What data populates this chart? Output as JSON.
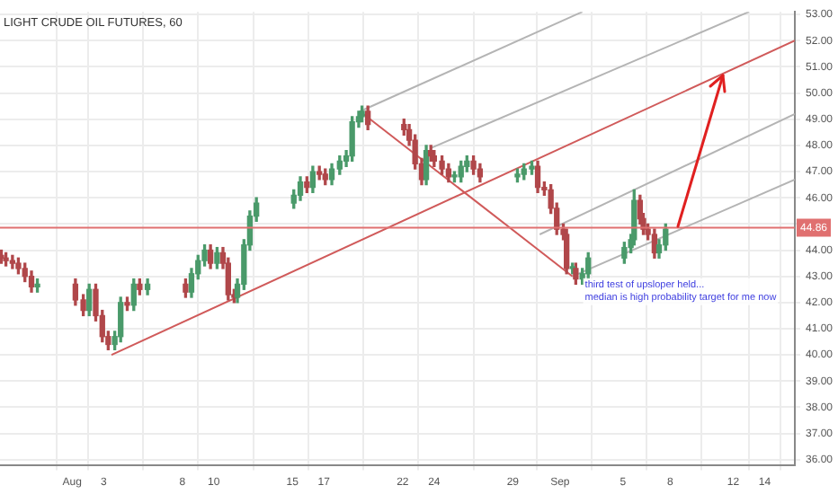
{
  "chart_data": {
    "type": "candlestick",
    "title": "LIGHT CRUDE OIL FUTURES, 60",
    "x": [
      "--07-27T12:00",
      "--07-27T19:00",
      "--07-28T05:00",
      "--07-28T14:00",
      "--07-29T00:00",
      "--07-29T10:00",
      "--07-29T19:00",
      "--08-01T05:00",
      "--08-01T17:00",
      "--08-02T02:00",
      "--08-02T12:00",
      "--08-02T22:00",
      "--08-03T07:00",
      "--08-03T17:00",
      "--08-04T02:00",
      "--08-04T12:00",
      "--08-04T22:00",
      "--08-05T07:00",
      "--08-05T19:00",
      "--08-08T05:00",
      "--08-08T14:00",
      "--08-09T00:00",
      "--08-09T10:00",
      "--08-09T19:00",
      "--08-10T05:00",
      "--08-10T14:00",
      "--08-10T22:00",
      "--08-11T07:00",
      "--08-11T12:00",
      "--08-11T22:00",
      "--08-12T07:00",
      "--08-12T17:00",
      "--08-15T02:00",
      "--08-15T12:00",
      "--08-15T22:00",
      "--08-16T07:00",
      "--08-16T17:00",
      "--08-17T02:00",
      "--08-17T12:00",
      "--08-18T00:00",
      "--08-18T10:00",
      "--08-18T19:00",
      "--08-19T05:00",
      "--08-19T10:00",
      "--08-19T19:00",
      "--08-22T02:00",
      "--08-22T10:00",
      "--08-22T19:00",
      "--08-23T05:00",
      "--08-23T12:00",
      "--08-23T19:00",
      "--08-24T00:00",
      "--08-24T12:00",
      "--08-24T22:00",
      "--08-25T07:00",
      "--08-25T17:00",
      "--08-26T02:00",
      "--08-26T12:00",
      "--08-26T22:00",
      "--08-29T07:00",
      "--08-29T17:00",
      "--08-30T05:00",
      "--08-30T14:00",
      "--08-31T00:00",
      "--08-31T10:00",
      "--08-31T19:00",
      "--09-01T05:00",
      "--09-01T10:00",
      "--09-01T19:00",
      "--09-02T00:00",
      "--09-02T10:00",
      "--09-02T19:00",
      "--09-05T02:00",
      "--09-05T12:00",
      "--09-05T17:00",
      "--09-06T02:00",
      "--09-06T07:00",
      "--09-06T14:00",
      "--09-07T00:00",
      "--09-07T07:00",
      "--09-07T17:00"
    ],
    "ohlc": [
      [
        43.8,
        44.0,
        43.5,
        43.7
      ],
      [
        43.7,
        43.9,
        43.4,
        43.6
      ],
      [
        43.6,
        43.8,
        43.3,
        43.5
      ],
      [
        43.5,
        43.7,
        43.1,
        43.3
      ],
      [
        43.3,
        43.5,
        42.8,
        43.0
      ],
      [
        43.0,
        43.2,
        42.4,
        42.6
      ],
      [
        42.6,
        42.9,
        42.4,
        42.7
      ],
      [
        42.7,
        42.9,
        41.9,
        42.1
      ],
      [
        42.1,
        42.3,
        41.5,
        41.7
      ],
      [
        41.7,
        42.7,
        41.5,
        42.5
      ],
      [
        42.5,
        42.7,
        41.3,
        41.5
      ],
      [
        41.5,
        41.7,
        40.5,
        40.7
      ],
      [
        40.7,
        40.9,
        40.2,
        40.4
      ],
      [
        40.4,
        40.9,
        40.2,
        40.7
      ],
      [
        40.7,
        42.2,
        40.5,
        42.0
      ],
      [
        42.0,
        42.2,
        41.7,
        41.9
      ],
      [
        41.9,
        42.9,
        41.7,
        42.7
      ],
      [
        42.7,
        42.9,
        42.3,
        42.5
      ],
      [
        42.5,
        42.9,
        42.3,
        42.7
      ],
      [
        42.7,
        42.9,
        42.2,
        42.4
      ],
      [
        42.4,
        43.3,
        42.2,
        43.1
      ],
      [
        43.1,
        43.8,
        42.9,
        43.6
      ],
      [
        43.6,
        44.2,
        43.4,
        44.0
      ],
      [
        44.0,
        44.2,
        43.3,
        43.5
      ],
      [
        43.5,
        44.1,
        43.3,
        43.9
      ],
      [
        43.9,
        44.1,
        43.3,
        43.5
      ],
      [
        43.5,
        43.7,
        42.1,
        42.3
      ],
      [
        42.3,
        42.5,
        42.0,
        42.2
      ],
      [
        42.2,
        42.9,
        42.0,
        42.7
      ],
      [
        42.7,
        44.4,
        42.5,
        44.2
      ],
      [
        44.2,
        45.5,
        44.0,
        45.3
      ],
      [
        45.3,
        46.0,
        45.1,
        45.8
      ],
      [
        45.8,
        46.3,
        45.6,
        46.1
      ],
      [
        46.1,
        46.8,
        45.9,
        46.6
      ],
      [
        46.6,
        46.8,
        46.2,
        46.4
      ],
      [
        46.4,
        47.2,
        46.2,
        47.0
      ],
      [
        47.0,
        47.2,
        46.7,
        46.9
      ],
      [
        46.9,
        47.1,
        46.5,
        46.7
      ],
      [
        46.7,
        47.3,
        46.5,
        47.1
      ],
      [
        47.1,
        47.6,
        46.9,
        47.4
      ],
      [
        47.4,
        47.8,
        47.2,
        47.6
      ],
      [
        47.6,
        49.1,
        47.4,
        48.9
      ],
      [
        48.9,
        49.3,
        48.7,
        49.1
      ],
      [
        49.1,
        49.5,
        48.9,
        49.3
      ],
      [
        49.3,
        49.5,
        48.6,
        48.8
      ],
      [
        48.8,
        49.0,
        48.4,
        48.6
      ],
      [
        48.6,
        48.8,
        48.0,
        48.2
      ],
      [
        48.2,
        48.4,
        47.1,
        47.3
      ],
      [
        47.3,
        47.5,
        46.5,
        46.7
      ],
      [
        46.7,
        48.0,
        46.5,
        47.8
      ],
      [
        47.8,
        48.0,
        47.4,
        47.6
      ],
      [
        47.6,
        47.8,
        47.2,
        47.4
      ],
      [
        47.4,
        47.6,
        46.9,
        47.1
      ],
      [
        47.1,
        47.3,
        46.6,
        46.8
      ],
      [
        46.8,
        47.0,
        46.6,
        46.8
      ],
      [
        46.8,
        47.4,
        46.6,
        47.2
      ],
      [
        47.2,
        47.6,
        47.0,
        47.4
      ],
      [
        47.4,
        47.6,
        46.9,
        47.1
      ],
      [
        47.1,
        47.3,
        46.6,
        46.8
      ],
      [
        46.8,
        47.1,
        46.6,
        46.9
      ],
      [
        46.9,
        47.3,
        46.7,
        47.1
      ],
      [
        47.1,
        47.4,
        46.9,
        47.2
      ],
      [
        47.2,
        47.4,
        46.2,
        46.4
      ],
      [
        46.4,
        46.6,
        46.1,
        46.3
      ],
      [
        46.3,
        46.5,
        45.4,
        45.6
      ],
      [
        45.6,
        45.8,
        44.6,
        44.8
      ],
      [
        44.8,
        45.0,
        44.4,
        44.6
      ],
      [
        44.6,
        44.8,
        43.1,
        43.3
      ],
      [
        43.3,
        43.5,
        43.1,
        43.3
      ],
      [
        43.3,
        43.5,
        42.7,
        42.9
      ],
      [
        42.9,
        43.3,
        42.7,
        43.1
      ],
      [
        43.1,
        43.9,
        42.9,
        43.7
      ],
      [
        43.7,
        44.3,
        43.5,
        44.1
      ],
      [
        44.1,
        44.6,
        43.9,
        44.4
      ],
      [
        44.4,
        46.3,
        44.2,
        45.9
      ],
      [
        45.9,
        46.1,
        45.0,
        45.2
      ],
      [
        45.2,
        45.4,
        44.6,
        44.8
      ],
      [
        44.8,
        45.0,
        44.4,
        44.6
      ],
      [
        44.6,
        44.8,
        43.7,
        43.9
      ],
      [
        43.9,
        44.4,
        43.7,
        44.2
      ],
      [
        44.2,
        45.0,
        44.0,
        44.8
      ]
    ],
    "colors": [
      "#b0474a",
      "#b0474a",
      "#b0474a",
      "#b0474a",
      "#b0474a",
      "#b0474a",
      "#4a9a6a",
      "#b0474a",
      "#b0474a",
      "#4a9a6a",
      "#b0474a",
      "#b0474a",
      "#b0474a",
      "#4a9a6a",
      "#4a9a6a",
      "#b0474a",
      "#4a9a6a",
      "#b0474a",
      "#4a9a6a",
      "#b0474a",
      "#4a9a6a",
      "#4a9a6a",
      "#4a9a6a",
      "#b0474a",
      "#4a9a6a",
      "#b0474a",
      "#b0474a",
      "#b0474a",
      "#4a9a6a",
      "#4a9a6a",
      "#4a9a6a",
      "#4a9a6a",
      "#4a9a6a",
      "#4a9a6a",
      "#b0474a",
      "#4a9a6a",
      "#b0474a",
      "#b0474a",
      "#4a9a6a",
      "#4a9a6a",
      "#4a9a6a",
      "#4a9a6a",
      "#4a9a6a",
      "#4a9a6a",
      "#b0474a",
      "#b0474a",
      "#b0474a",
      "#b0474a",
      "#b0474a",
      "#4a9a6a",
      "#b0474a",
      "#b0474a",
      "#b0474a",
      "#b0474a",
      "#4a9a6a",
      "#4a9a6a",
      "#4a9a6a",
      "#b0474a",
      "#b0474a",
      "#4a9a6a",
      "#4a9a6a",
      "#4a9a6a",
      "#b0474a",
      "#b0474a",
      "#b0474a",
      "#b0474a",
      "#b0474a",
      "#b0474a",
      "#4a9a6a",
      "#b0474a",
      "#4a9a6a",
      "#4a9a6a",
      "#4a9a6a",
      "#4a9a6a",
      "#4a9a6a",
      "#b0474a",
      "#b0474a",
      "#b0474a",
      "#b0474a",
      "#4a9a6a",
      "#4a9a6a"
    ],
    "series": [
      {
        "type": "line",
        "color": "#b4b4b4",
        "x": [
          "--08-19T07:00",
          "--09-02T10:00"
        ],
        "values": [
          49.3,
          53.1
        ]
      },
      {
        "type": "line",
        "color": "#b4b4b4",
        "x": [
          "--08-23T19:00",
          "--09-13T00:00"
        ],
        "values": [
          47.9,
          53.1
        ]
      },
      {
        "type": "line",
        "color": "#d05a5a",
        "x": [
          "--08-03T12:00",
          "--09-15T22:00"
        ],
        "values": [
          40.0,
          52.0
        ]
      },
      {
        "type": "line",
        "color": "#b4b4b4",
        "x": [
          "--08-30T17:00",
          "--09-15T22:00"
        ],
        "values": [
          44.6,
          49.2
        ]
      },
      {
        "type": "line",
        "color": "#b4b4b4",
        "x": [
          "--09-01T19:00",
          "--09-15T22:00"
        ],
        "values": [
          43.0,
          46.7
        ]
      },
      {
        "type": "line",
        "color": "#d05a5a",
        "x": [
          "--08-19T07:00",
          "--09-01T19:00"
        ],
        "values": [
          49.3,
          43.0
        ]
      }
    ],
    "ref_lines": [
      {
        "axis": "y",
        "value": 44.86,
        "label": "44.86",
        "color": "#e07070"
      }
    ],
    "annotations": [
      {
        "text": "third test of upsloper held...\nmedian is high probability target for me now",
        "x": "--09-02T14:00",
        "y": 43.0
      }
    ],
    "xlim": [
      "--07-27T10:00",
      "--09-15T22:00"
    ],
    "ylim": [
      35.8,
      53.1
    ],
    "xticks": [
      {
        "value": "--08-01",
        "label": "Aug"
      },
      {
        "value": "--08-03",
        "label": "3"
      },
      {
        "value": "--08-08",
        "label": "8"
      },
      {
        "value": "--08-10",
        "label": "10"
      },
      {
        "value": "--08-15",
        "label": "15"
      },
      {
        "value": "--08-17",
        "label": "17"
      },
      {
        "value": "--08-22",
        "label": "22"
      },
      {
        "value": "--08-24",
        "label": "24"
      },
      {
        "value": "--08-29",
        "label": "29"
      },
      {
        "value": "--09-01",
        "label": "Sep"
      },
      {
        "value": "--09-05",
        "label": "5"
      },
      {
        "value": "--09-08",
        "label": "8"
      },
      {
        "value": "--09-12",
        "label": "12"
      },
      {
        "value": "--09-14",
        "label": "14"
      }
    ],
    "yticks": [
      {
        "value": 36,
        "label": "36.00"
      },
      {
        "value": 37,
        "label": "37.00"
      },
      {
        "value": 38,
        "label": "38.00"
      },
      {
        "value": 39,
        "label": "39.00"
      },
      {
        "value": 40,
        "label": "40.00"
      },
      {
        "value": 41,
        "label": "41.00"
      },
      {
        "value": 42,
        "label": "42.00"
      },
      {
        "value": 43,
        "label": "43.00"
      },
      {
        "value": 44,
        "label": "44.00"
      },
      {
        "value": 45,
        "label": null
      },
      {
        "value": 46,
        "label": "46.00"
      },
      {
        "value": 47,
        "label": "47.00"
      },
      {
        "value": 48,
        "label": "48.00"
      },
      {
        "value": 49,
        "label": "49.00"
      },
      {
        "value": 50,
        "label": "50.00"
      },
      {
        "value": 51,
        "label": "51.00"
      },
      {
        "value": 52,
        "label": "52.00"
      },
      {
        "value": 53,
        "label": "53.00"
      }
    ],
    "grid": true,
    "legend": false
  }
}
